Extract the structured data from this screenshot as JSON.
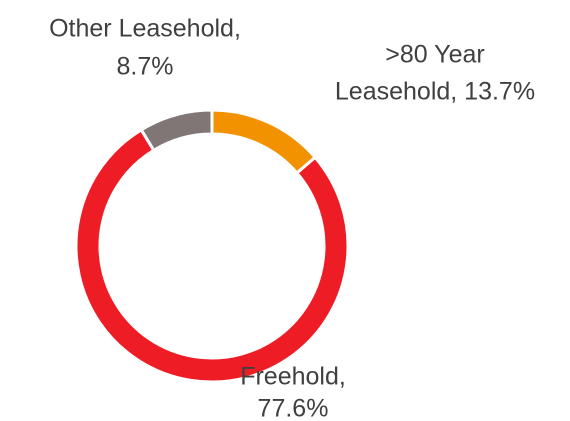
{
  "chart_data": {
    "type": "donut",
    "labels": [
      [
        ">80 Year",
        "Leasehold, 13.7%"
      ],
      [
        "Freehold,",
        "77.6%"
      ],
      [
        "Other Leasehold,",
        "8.7%"
      ]
    ],
    "values": [
      13.7,
      77.6,
      8.7
    ],
    "colors": [
      "#f39200",
      "#ee1c25",
      "#807676"
    ]
  }
}
